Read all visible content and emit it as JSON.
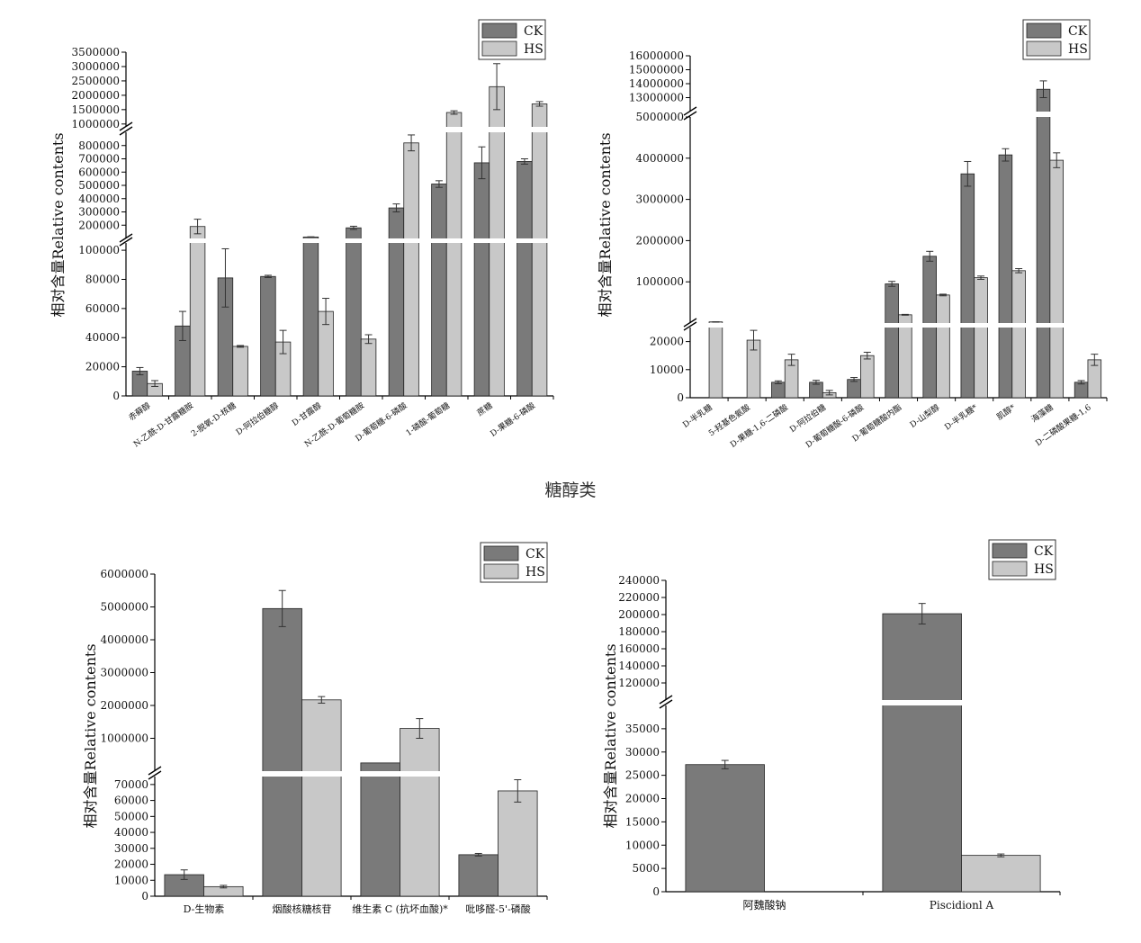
{
  "center_label": "糖醇类",
  "chart_data": [
    {
      "type": "bar",
      "ylabel": "相对含量Relative contents",
      "legend": "top-right",
      "colors": {
        "CK": "#7a7a7a",
        "HS": "#c8c8c8"
      },
      "series": [
        {
          "name": "CK",
          "values": [
            17000,
            48000,
            81000,
            82000,
            111000,
            180000,
            330000,
            510000,
            670000,
            680000
          ],
          "errors": [
            2500,
            10000,
            20000,
            800,
            1500,
            12000,
            30000,
            25000,
            120000,
            20000
          ]
        },
        {
          "name": "HS",
          "values": [
            8500,
            190000,
            34000,
            37000,
            58000,
            39000,
            820000,
            1400000,
            2300000,
            1700000
          ],
          "errors": [
            2000,
            55000,
            600,
            8000,
            9000,
            3000,
            60000,
            60000,
            800000,
            80000
          ]
        }
      ],
      "categories": [
        "赤藓醇",
        "N-乙酰-D-甘露糖胺",
        "2-脱氧-D-核糖",
        "D-阿拉伯糖醇",
        "D-甘露醇",
        "N-乙酰-D-葡萄糖胺",
        "D-葡萄糖-6-磷酸",
        "1-磷酸-葡萄糖",
        "蔗糖",
        "D-果糖-6-磷酸"
      ],
      "segments": [
        {
          "min": 0,
          "max": 105000,
          "ticks": [
            0,
            20000,
            40000,
            60000,
            80000,
            100000
          ]
        },
        {
          "min": 100000,
          "max": 900000,
          "ticks": [
            200000,
            300000,
            400000,
            500000,
            600000,
            700000,
            800000
          ]
        },
        {
          "min": 900000,
          "max": 3500000,
          "ticks": [
            1000000,
            1500000,
            2000000,
            2500000,
            3000000,
            3500000
          ]
        }
      ]
    },
    {
      "type": "bar",
      "ylabel": "相对含量Relative contents",
      "legend": "top-right",
      "colors": {
        "CK": "#7a7a7a",
        "HS": "#c8c8c8"
      },
      "series": [
        {
          "name": "CK",
          "values": [
            0,
            0,
            5500,
            5500,
            6500,
            950000,
            1620000,
            3620000,
            4080000,
            13600000,
            5500
          ],
          "errors": [
            0,
            0,
            500,
            700,
            700,
            60000,
            120000,
            300000,
            150000,
            600000,
            600
          ]
        },
        {
          "name": "HS",
          "values": [
            28000,
            20500,
            13500,
            1800,
            15000,
            200000,
            680000,
            1100000,
            1270000,
            3950000,
            13500
          ],
          "errors": [
            500,
            3500,
            2000,
            800,
            1200,
            10000,
            20000,
            40000,
            50000,
            180000,
            2000
          ]
        }
      ],
      "categories": [
        "D-半乳糖",
        "5-羟基色氨酸",
        "D-果糖-1,6-二磷酸",
        "D-阿拉伯糖",
        "D-葡萄糖酸-6-磷酸",
        "D-葡萄糖酸内酯",
        "D-山梨醇",
        "D-半乳糖*",
        "肌醇*",
        "海藻糖",
        "D-二磷酸果糖-1,6"
      ],
      "segments": [
        {
          "min": 0,
          "max": 25000,
          "ticks": [
            0,
            10000,
            20000
          ]
        },
        {
          "min": 0,
          "max": 5000000,
          "ticks": [
            1000000,
            2000000,
            3000000,
            4000000,
            5000000
          ]
        },
        {
          "min": 12000000,
          "max": 16000000,
          "ticks": [
            13000000,
            14000000,
            15000000,
            16000000
          ]
        }
      ]
    },
    {
      "type": "bar",
      "ylabel": "相对含量Relative contents",
      "legend": "top-right",
      "colors": {
        "CK": "#7a7a7a",
        "HS": "#c8c8c8"
      },
      "series": [
        {
          "name": "CK",
          "values": [
            13500,
            4950000,
            250000,
            26000
          ],
          "errors": [
            3000,
            550000,
            0,
            800
          ]
        },
        {
          "name": "HS",
          "values": [
            6000,
            2170000,
            1300000,
            66000
          ],
          "errors": [
            800,
            100000,
            300000,
            7000
          ]
        }
      ],
      "categories": [
        "D-生物素",
        "烟酸核糖核苷",
        "维生素 C (抗坏血酸)*",
        "吡哆醛-5'-磷酸"
      ],
      "segments": [
        {
          "min": 0,
          "max": 75000,
          "ticks": [
            0,
            10000,
            20000,
            30000,
            40000,
            50000,
            60000,
            70000
          ]
        },
        {
          "min": 0,
          "max": 6000000,
          "ticks": [
            1000000,
            2000000,
            3000000,
            4000000,
            5000000,
            6000000
          ]
        }
      ]
    },
    {
      "type": "bar",
      "ylabel": "相对含量Relative contents",
      "legend": "top-right",
      "colors": {
        "CK": "#7a7a7a",
        "HS": "#c8c8c8"
      },
      "series": [
        {
          "name": "CK",
          "values": [
            27300,
            201000
          ],
          "errors": [
            900,
            12000
          ]
        },
        {
          "name": "HS",
          "values": [
            0,
            7800
          ],
          "errors": [
            0,
            300
          ]
        }
      ],
      "categories": [
        "阿魏酸钠",
        "Piscidionl A"
      ],
      "segments": [
        {
          "min": 0,
          "max": 40000,
          "ticks": [
            0,
            5000,
            10000,
            15000,
            20000,
            25000,
            30000,
            35000
          ]
        },
        {
          "min": 100000,
          "max": 240000,
          "ticks": [
            120000,
            140000,
            160000,
            180000,
            200000,
            220000,
            240000
          ]
        }
      ]
    }
  ]
}
